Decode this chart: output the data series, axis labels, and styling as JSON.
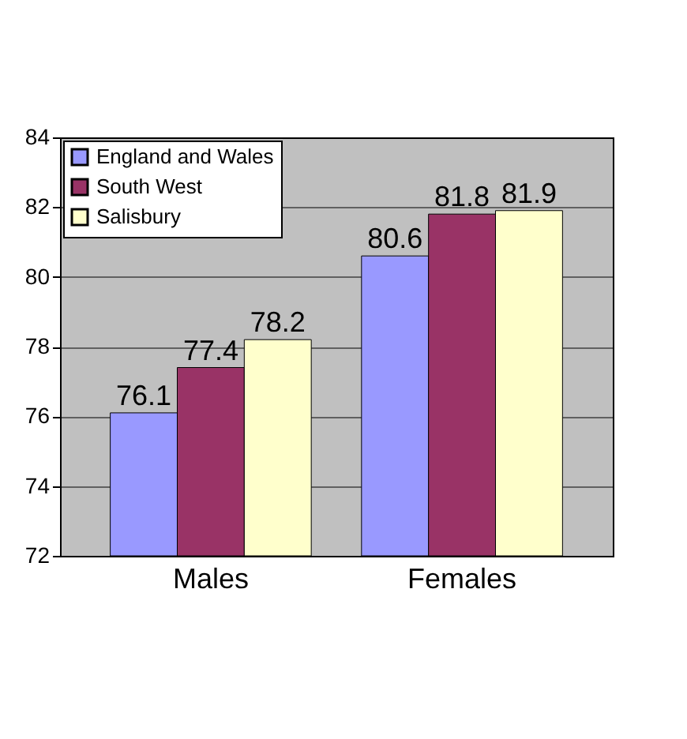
{
  "chart_data": {
    "type": "bar",
    "categories": [
      "Males",
      "Females"
    ],
    "series": [
      {
        "name": "England and Wales",
        "color": "#9999ff",
        "values": [
          76.1,
          80.6
        ]
      },
      {
        "name": "South West",
        "color": "#993366",
        "values": [
          77.4,
          81.8
        ]
      },
      {
        "name": "Salisbury",
        "color": "#ffffcc",
        "values": [
          78.2,
          81.9
        ]
      }
    ],
    "ylim": [
      72,
      84
    ],
    "yticks": [
      72,
      74,
      76,
      78,
      80,
      82,
      84
    ],
    "grid": "y",
    "legend": "top left",
    "data_labels": true
  }
}
